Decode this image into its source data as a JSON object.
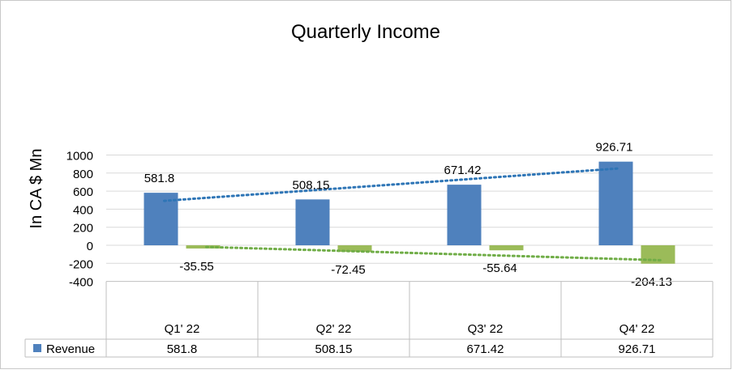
{
  "chart_data": {
    "type": "bar",
    "title": "Quarterly Income",
    "ylabel": "In CA $ Mn",
    "xlabel": "",
    "ylim": [
      -400,
      1000
    ],
    "yticks": [
      -400,
      -200,
      0,
      200,
      400,
      600,
      800,
      1000
    ],
    "categories": [
      "Q1' 22",
      "Q2' 22",
      "Q3' 22",
      "Q4' 22"
    ],
    "series": [
      {
        "name": "Revenue",
        "values": [
          581.8,
          508.15,
          671.42,
          926.71
        ],
        "color": "#4f81bd"
      },
      {
        "values": [
          -35.55,
          -72.45,
          -55.64,
          -204.13
        ],
        "color": "#9bbb59"
      }
    ],
    "data_labels": [
      [
        "581.8",
        "508.15",
        "671.42",
        "926.71"
      ],
      [
        "-35.55",
        "-72.45",
        "-55.64",
        "-204.13"
      ]
    ],
    "trendlines": [
      {
        "series": 0,
        "style": "dotted linear",
        "color": "#2e75b6"
      },
      {
        "series": 1,
        "style": "dotted linear",
        "color": "#70ad47"
      }
    ],
    "data_table": {
      "legend_label": "Revenue",
      "legend_color": "#4f81bd",
      "values": [
        "581.8",
        "508.15",
        "671.42",
        "926.71"
      ]
    },
    "grid": true
  }
}
